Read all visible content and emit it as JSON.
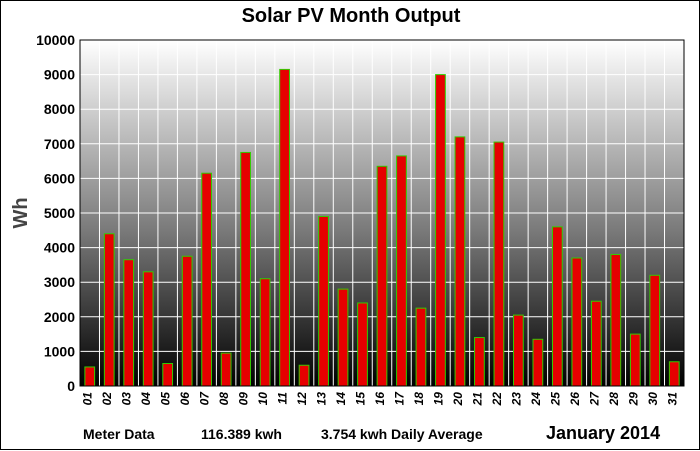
{
  "chart_data": {
    "type": "bar",
    "title": "Solar PV Month Output",
    "ylabel": "Wh",
    "xlabel": "",
    "ylim": [
      0,
      10000
    ],
    "yticks": [
      0,
      1000,
      2000,
      3000,
      4000,
      5000,
      6000,
      7000,
      8000,
      9000,
      10000
    ],
    "grid": true,
    "categories": [
      "01",
      "02",
      "03",
      "04",
      "05",
      "06",
      "07",
      "08",
      "09",
      "10",
      "11",
      "12",
      "13",
      "14",
      "15",
      "16",
      "17",
      "18",
      "19",
      "20",
      "21",
      "22",
      "23",
      "24",
      "25",
      "26",
      "27",
      "28",
      "29",
      "30",
      "31"
    ],
    "values": [
      550,
      4400,
      3650,
      3300,
      650,
      3750,
      6150,
      950,
      6750,
      3100,
      9150,
      600,
      4900,
      2800,
      2400,
      6350,
      6650,
      2250,
      9000,
      7200,
      1400,
      7050,
      2050,
      1350,
      4600,
      3700,
      2450,
      3800,
      1500,
      3200,
      700
    ],
    "colors": {
      "bar_fill": "#e60000",
      "bar_edge": "#33cc00"
    }
  },
  "footer": {
    "meter_label": "Meter Data",
    "total": "116.389 kwh",
    "average": "3.754 kwh Daily Average",
    "period": "January 2014"
  }
}
